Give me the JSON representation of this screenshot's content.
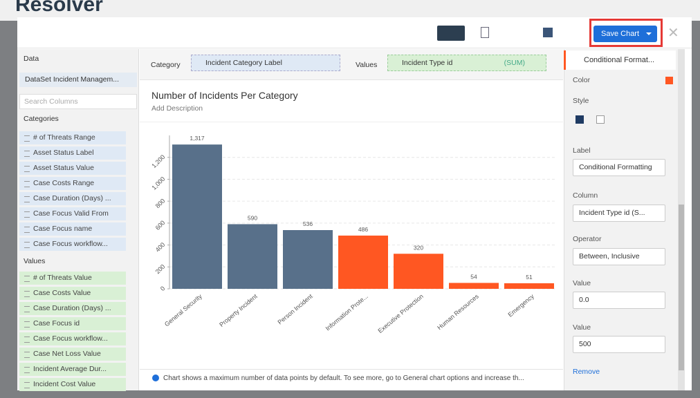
{
  "app": {
    "brand": "Resolver"
  },
  "toolbar": {
    "save_button": "Save Chart"
  },
  "data_panel": {
    "heading": "Data",
    "dataset": "DataSet Incident Managem...",
    "search_placeholder": "Search Columns",
    "categories_heading": "Categories",
    "categories": [
      "# of Threats Range",
      "Asset Status Label",
      "Asset Status Value",
      "Case Costs Range",
      "Case Duration (Days) ...",
      "Case Focus Valid From",
      "Case Focus name",
      "Case Focus workflow..."
    ],
    "values_heading": "Values",
    "values": [
      "# of Threats Value",
      "Case Costs Value",
      "Case Duration (Days) ...",
      "Case Focus id",
      "Case Focus workflow...",
      "Case Net Loss Value",
      "Incident Average Dur...",
      "Incident Cost Value"
    ]
  },
  "fields": {
    "category_label": "Category",
    "category_field": "Incident Category Label",
    "values_label": "Values",
    "values_field": "Incident Type id",
    "values_agg": "(SUM)"
  },
  "chart_data": {
    "type": "bar",
    "title": "Number of Incidents Per Category",
    "subtitle": "Add Description",
    "categories": [
      "General Security",
      "Property Incident",
      "Person Incident",
      "Information Prote...",
      "Executive Protection",
      "Human Resources",
      "Emergency"
    ],
    "values": [
      1317,
      590,
      536,
      486,
      320,
      54,
      51
    ],
    "value_labels": [
      "1,317",
      "590",
      "536",
      "486",
      "320",
      "54",
      "51"
    ],
    "colors": [
      "#58708a",
      "#58708a",
      "#58708a",
      "#ff5722",
      "#ff5722",
      "#ff5722",
      "#ff5722"
    ],
    "ylim": [
      0,
      1400
    ],
    "yticks": [
      0,
      200,
      400,
      600,
      800,
      {
        "value": 1000,
        "label": "1,000"
      },
      {
        "value": 1200,
        "label": "1,200"
      }
    ],
    "grid": true
  },
  "notice": "Chart shows a maximum number of data points by default. To see more, go to General chart options and increase th...",
  "format_panel": {
    "header": "Conditional Format...",
    "color_label": "Color",
    "style_label": "Style",
    "label_label": "Label",
    "label_value": "Conditional Formatting",
    "column_label": "Column",
    "column_value": "Incident Type id (S...",
    "operator_label": "Operator",
    "operator_value": "Between, Inclusive",
    "value1_label": "Value",
    "value1": "0.0",
    "value2_label": "Value",
    "value2": "500",
    "remove": "Remove"
  }
}
